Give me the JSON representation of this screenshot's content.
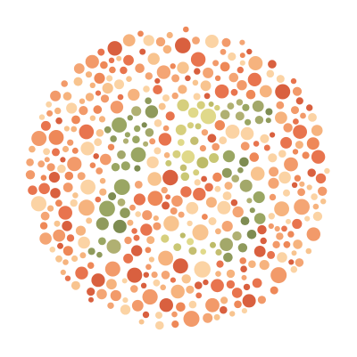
{
  "plate": {
    "digits": "15",
    "background_palette": [
      "#e8744e",
      "#f29a6a",
      "#f6b37e",
      "#f8c48f",
      "#ee8858",
      "#d9603f",
      "#f4a574",
      "#fbd3a4"
    ],
    "figure_palette_left": [
      "#8f9a5c",
      "#a3a86a",
      "#7e8c52",
      "#b0b072",
      "#9aa663"
    ],
    "figure_palette_right": [
      "#c9c774",
      "#d6cf7d",
      "#bdbb68",
      "#e0d98a",
      "#c4be70"
    ],
    "icon": "ishihara-color-plate-icon"
  }
}
